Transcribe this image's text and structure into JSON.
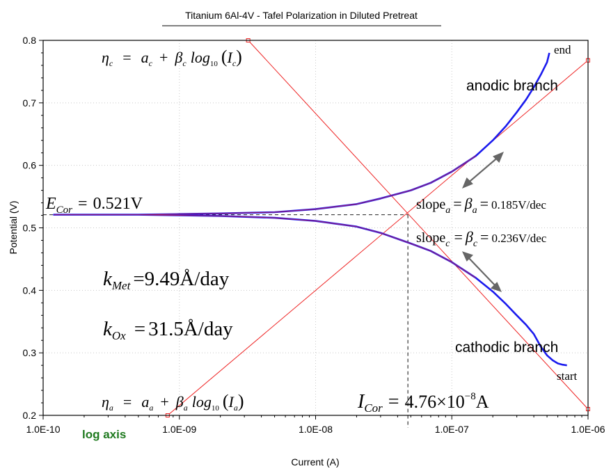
{
  "chart_data": {
    "type": "line",
    "title": "Titanium 6Al-4V - Tafel Polarization in Diluted Pretreat",
    "xlabel": "Current (A)",
    "ylabel": "Potential (V)",
    "x_scale": "log",
    "xlim": [
      1e-10,
      1e-06
    ],
    "ylim": [
      0.2,
      0.8
    ],
    "x_ticks": [
      1e-10,
      1e-09,
      1e-08,
      1e-07,
      1e-06
    ],
    "x_tick_labels": [
      "1.0E-10",
      "1.0E-09",
      "1.0E-08",
      "1.0E-07",
      "1.0E-06"
    ],
    "y_ticks": [
      0.2,
      0.3,
      0.4,
      0.5,
      0.6,
      0.7,
      0.8
    ],
    "y_tick_labels": [
      "0.2",
      "0.3",
      "0.4",
      "0.5",
      "0.6",
      "0.7",
      "0.8"
    ],
    "grid": true,
    "series": [
      {
        "color": "#1a1aee",
        "x": [
          7e-07,
          6.5e-07,
          6e-07,
          5.5e-07,
          5e-07,
          4.5e-07,
          4e-07,
          3.5e-07,
          3e-07,
          2.5e-07,
          2e-07,
          1.5e-07,
          1e-07,
          7e-08,
          5e-08,
          3e-08,
          2e-08,
          1e-08,
          5e-09,
          2e-09,
          1e-09,
          5e-10,
          2e-10,
          1.2e-10,
          2e-10,
          5e-10,
          1e-09,
          2e-09,
          5e-09,
          1e-08,
          2e-08,
          3e-08,
          5e-08,
          7e-08,
          1e-07,
          1.5e-07,
          2e-07,
          2.5e-07,
          3e-07,
          3.5e-07,
          4e-07,
          4.5e-07,
          5e-07,
          5.2e-07
        ],
        "y": [
          0.28,
          0.281,
          0.283,
          0.288,
          0.296,
          0.31,
          0.33,
          0.345,
          0.36,
          0.378,
          0.398,
          0.42,
          0.445,
          0.463,
          0.475,
          0.492,
          0.502,
          0.511,
          0.516,
          0.519,
          0.52,
          0.521,
          0.521,
          0.521,
          0.521,
          0.521,
          0.522,
          0.523,
          0.525,
          0.53,
          0.538,
          0.547,
          0.56,
          0.572,
          0.59,
          0.615,
          0.64,
          0.663,
          0.685,
          0.705,
          0.725,
          0.745,
          0.765,
          0.78
        ]
      },
      {
        "color": "#ee2222",
        "x": [
          3.2e-09,
          1e-06
        ],
        "y": [
          0.8,
          0.21
        ]
      },
      {
        "color": "#ee2222",
        "x": [
          8.2e-10,
          1e-06
        ],
        "y": [
          0.2,
          0.768
        ]
      }
    ],
    "corrosion_current_line": {
      "x": 4.76e-08,
      "y": 0.521
    },
    "annotations": {
      "eta_c": [
        "η",
        "c",
        "=",
        "a",
        "c",
        "+",
        "β",
        "c",
        "log",
        "10",
        "(",
        "I",
        "c",
        ")"
      ],
      "eta_a": [
        "η",
        "a",
        "=",
        "a",
        "a",
        "+",
        "β",
        "a",
        "log",
        "10",
        "(",
        "I",
        "a",
        ")"
      ],
      "ecor": [
        "E",
        "Cor",
        "=",
        "0.521V"
      ],
      "kmet": [
        "k",
        "Met",
        "=9.49Å/day"
      ],
      "kox": [
        "k",
        "Ox",
        "=",
        "31.5Å/day"
      ],
      "icor": [
        "I",
        "Cor",
        "=",
        "4.76×10",
        "−8",
        "A"
      ],
      "slope_a": [
        "slope",
        "a",
        "=",
        "β",
        "a",
        "=",
        "0.185V/dec"
      ],
      "slope_c": [
        "slope",
        "c",
        "=",
        "β",
        "c",
        "=",
        "0.236V/dec"
      ],
      "anodic": "anodic branch",
      "cathodic": "cathodic branch",
      "end": "end",
      "start": "start",
      "log_axis": "log axis"
    }
  }
}
